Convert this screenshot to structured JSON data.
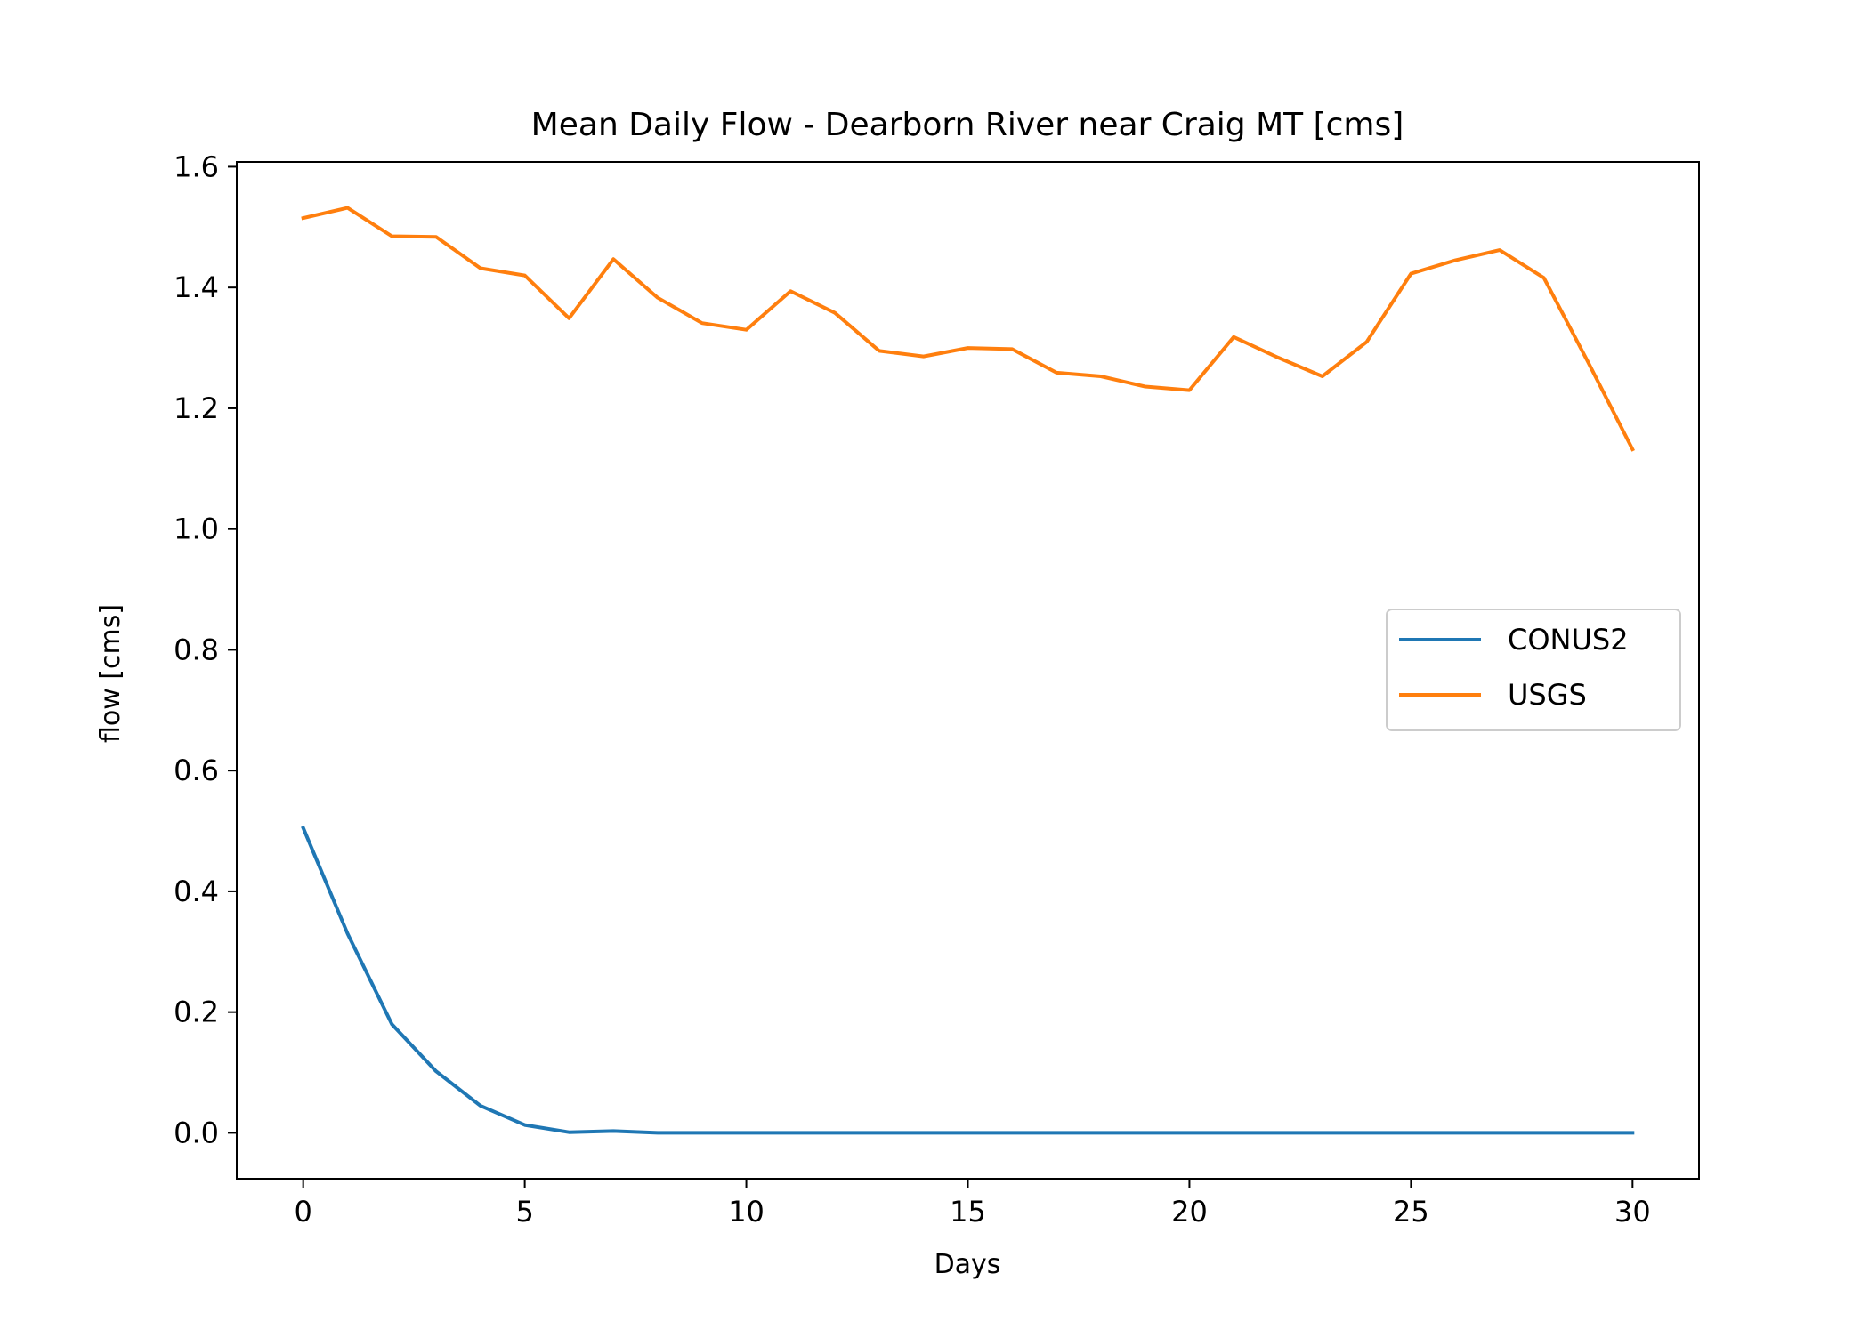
{
  "chart_data": {
    "type": "line",
    "title": "Mean Daily Flow - Dearborn River near Craig MT [cms]",
    "xlabel": "Days",
    "ylabel": "flow [cms]",
    "xlim": [
      -1.5,
      31.5
    ],
    "ylim": [
      -0.076,
      1.608
    ],
    "xticks": [
      0,
      5,
      10,
      15,
      20,
      25,
      30
    ],
    "yticks": [
      0.0,
      0.2,
      0.4,
      0.6,
      0.8,
      1.0,
      1.2,
      1.4,
      1.6
    ],
    "ytick_labels": [
      "0.0",
      "0.2",
      "0.4",
      "0.6",
      "0.8",
      "1.0",
      "1.2",
      "1.4",
      "1.6"
    ],
    "grid": false,
    "legend_position": "center-right",
    "x": [
      0,
      1,
      2,
      3,
      4,
      5,
      6,
      7,
      8,
      9,
      10,
      11,
      12,
      13,
      14,
      15,
      16,
      17,
      18,
      19,
      20,
      21,
      22,
      23,
      24,
      25,
      26,
      27,
      28,
      29,
      30
    ],
    "series": [
      {
        "name": "CONUS2",
        "color": "#1f77b4",
        "values": [
          0.505,
          0.33,
          0.18,
          0.102,
          0.045,
          0.013,
          0.001,
          0.003,
          0.0,
          0.0,
          0.0,
          0.0,
          0.0,
          0.0,
          0.0,
          0.0,
          0.0,
          0.0,
          0.0,
          0.0,
          0.0,
          0.0,
          0.0,
          0.0,
          0.0,
          0.0,
          0.0,
          0.0,
          0.0,
          0.0,
          0.0
        ]
      },
      {
        "name": "USGS",
        "color": "#ff7f0e",
        "values": [
          1.515,
          1.532,
          1.485,
          1.484,
          1.432,
          1.42,
          1.349,
          1.447,
          1.383,
          1.341,
          1.33,
          1.394,
          1.358,
          1.295,
          1.286,
          1.3,
          1.298,
          1.259,
          1.253,
          1.236,
          1.23,
          1.318,
          1.284,
          1.253,
          1.31,
          1.423,
          1.445,
          1.462,
          1.416,
          1.276,
          1.132
        ]
      }
    ]
  }
}
